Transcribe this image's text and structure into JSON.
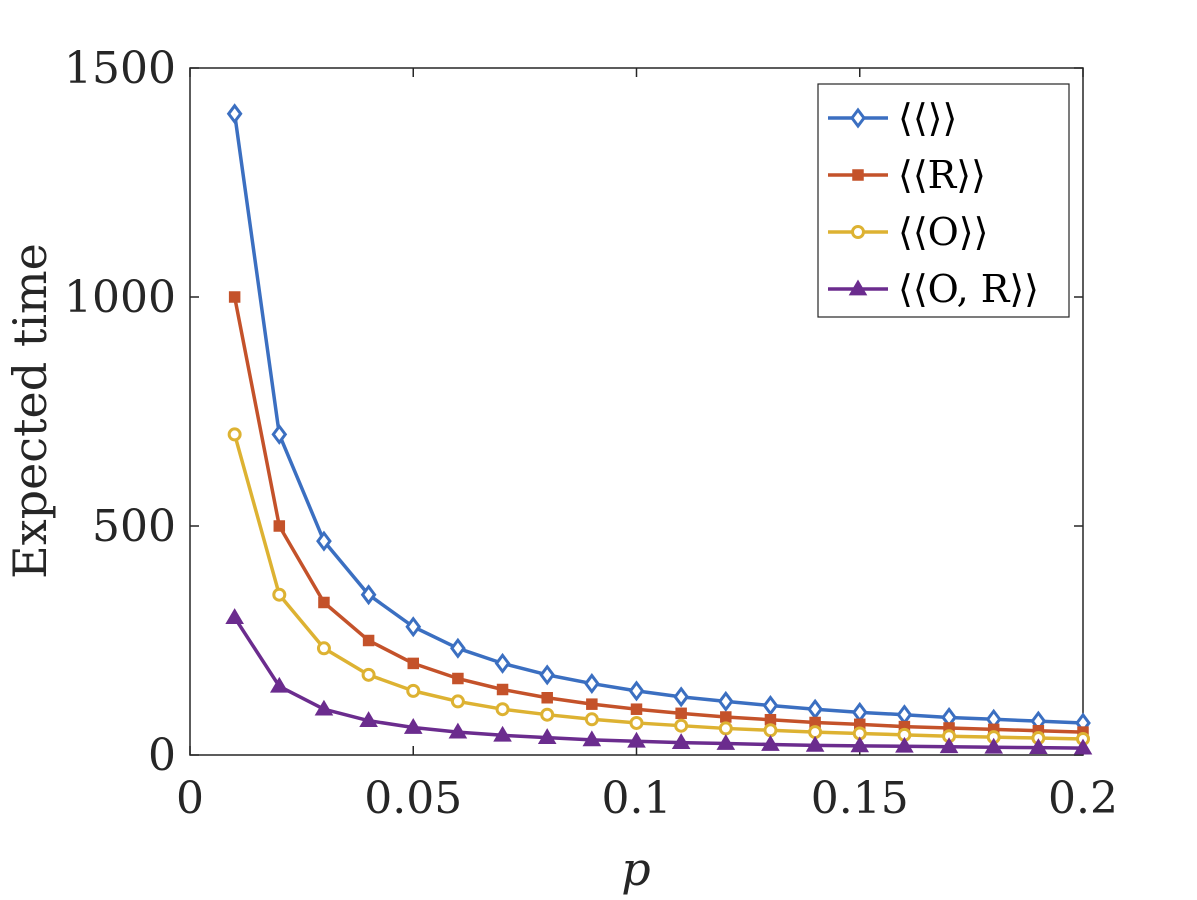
{
  "chart_data": {
    "type": "line",
    "xlabel": "p",
    "ylabel": "Expected time",
    "xlim": [
      0,
      0.2
    ],
    "ylim": [
      0,
      1500
    ],
    "x_ticks": [
      "0",
      "0.05",
      "0.1",
      "0.15",
      "0.2"
    ],
    "y_ticks": [
      "0",
      "500",
      "1000",
      "1500"
    ],
    "grid": false,
    "legend_position": "top-right",
    "x": [
      0.01,
      0.02,
      0.03,
      0.04,
      0.05,
      0.06,
      0.07,
      0.08,
      0.09,
      0.1,
      0.11,
      0.12,
      0.13,
      0.14,
      0.15,
      0.16,
      0.17,
      0.18,
      0.19,
      0.2
    ],
    "series": [
      {
        "name": "⟨⟨⟩⟩",
        "color": "#3B6FC1",
        "marker": "diamond",
        "values": [
          1400,
          700,
          467,
          350,
          280,
          233,
          200,
          175,
          156,
          140,
          127,
          117,
          108,
          100,
          93,
          88,
          82,
          78,
          74,
          70
        ]
      },
      {
        "name": "⟨⟨R⟩⟩",
        "color": "#C4522A",
        "marker": "square",
        "values": [
          1000,
          500,
          333,
          250,
          200,
          167,
          143,
          125,
          111,
          100,
          91,
          83,
          77,
          71,
          67,
          62,
          59,
          56,
          53,
          50
        ]
      },
      {
        "name": "⟨⟨O⟩⟩",
        "color": "#DDB232",
        "marker": "circle",
        "values": [
          700,
          350,
          233,
          175,
          140,
          117,
          100,
          88,
          78,
          70,
          64,
          58,
          54,
          50,
          47,
          44,
          41,
          39,
          37,
          35
        ]
      },
      {
        "name": "⟨⟨O, R⟩⟩",
        "color": "#6B2C8E",
        "marker": "triangle",
        "values": [
          300,
          150,
          100,
          75,
          60,
          50,
          43,
          38,
          33,
          30,
          27,
          25,
          23,
          21,
          20,
          19,
          18,
          17,
          16,
          15
        ]
      }
    ]
  }
}
